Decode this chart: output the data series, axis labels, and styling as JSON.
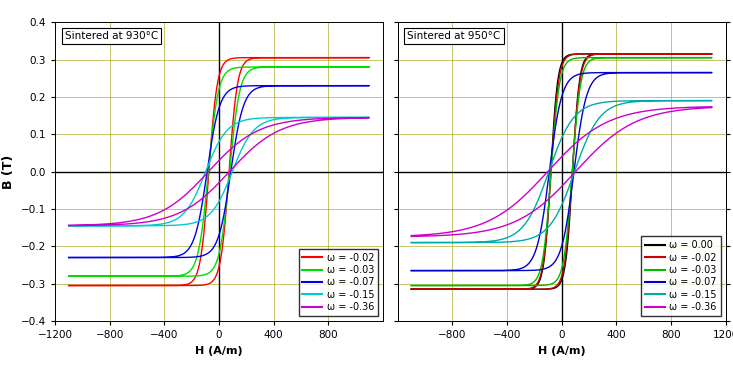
{
  "left_title": "Sintered at 930°C",
  "right_title": "Sintered at 950°C",
  "xlabel": "H (A/m)",
  "ylabel": "B (T)",
  "xlim": [
    -1200,
    1200
  ],
  "ylim": [
    -0.4,
    0.4
  ],
  "left_xticks": [
    -1200,
    -800,
    -400,
    0,
    400,
    800
  ],
  "right_xticks": [
    -800,
    -400,
    0,
    400,
    800,
    1200
  ],
  "yticks": [
    -0.4,
    -0.3,
    -0.2,
    -0.1,
    0.0,
    0.1,
    0.2,
    0.3,
    0.4
  ],
  "grid_color": "#9a9a00",
  "background_color": "#ffffff",
  "left_series": [
    {
      "label": "ω = -0.02",
      "color": "#ff0000",
      "Bsat": 0.305,
      "Hc": 35,
      "Br": 0.255,
      "k1": 18,
      "k2": 1.2
    },
    {
      "label": "ω = -0.03",
      "color": "#00dd00",
      "Bsat": 0.28,
      "Hc": 50,
      "Br": 0.22,
      "k1": 15,
      "k2": 1.2
    },
    {
      "label": "ω = -0.07",
      "color": "#0000ee",
      "Bsat": 0.23,
      "Hc": 70,
      "Br": 0.17,
      "k1": 12,
      "k2": 1.1
    },
    {
      "label": "ω = -0.15",
      "color": "#00cccc",
      "Bsat": 0.145,
      "Hc": 90,
      "Br": 0.08,
      "k1": 7,
      "k2": 0.9
    },
    {
      "label": "ω = -0.36",
      "color": "#cc00cc",
      "Bsat": 0.145,
      "Hc": 200,
      "Br": 0.03,
      "k1": 3,
      "k2": 0.6
    }
  ],
  "right_series": [
    {
      "label": "ω = 0.00",
      "color": "#000000",
      "Bsat": 0.315,
      "Hc": 30,
      "Br": 0.29,
      "k1": 22,
      "k2": 1.3
    },
    {
      "label": "ω = -0.02",
      "color": "#cc0000",
      "Bsat": 0.315,
      "Hc": 35,
      "Br": 0.28,
      "k1": 20,
      "k2": 1.3
    },
    {
      "label": "ω = -0.03",
      "color": "#00bb00",
      "Bsat": 0.305,
      "Hc": 45,
      "Br": 0.26,
      "k1": 18,
      "k2": 1.2
    },
    {
      "label": "ω = -0.07",
      "color": "#0000cc",
      "Bsat": 0.265,
      "Hc": 65,
      "Br": 0.2,
      "k1": 12,
      "k2": 1.1
    },
    {
      "label": "ω = -0.15",
      "color": "#00aaaa",
      "Bsat": 0.19,
      "Hc": 100,
      "Br": 0.09,
      "k1": 6,
      "k2": 0.85
    },
    {
      "label": "ω = -0.36",
      "color": "#cc00cc",
      "Bsat": 0.175,
      "Hc": 250,
      "Br": 0.04,
      "k1": 2.5,
      "k2": 0.6
    }
  ]
}
